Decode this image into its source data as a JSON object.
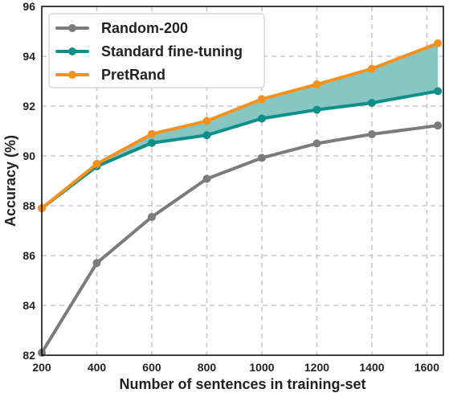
{
  "chart_data": {
    "type": "line",
    "xlabel": "Number of sentences in training-set",
    "ylabel": "Accuracy (%)",
    "xlim": [
      200,
      1660
    ],
    "ylim": [
      82,
      96
    ],
    "x_ticks": [
      200,
      400,
      600,
      800,
      1000,
      1200,
      1400,
      1600
    ],
    "y_ticks": [
      82,
      84,
      86,
      88,
      90,
      92,
      94,
      96
    ],
    "x": [
      200,
      400,
      600,
      800,
      1000,
      1200,
      1400,
      1640
    ],
    "grid": true,
    "legend_position": "top-left",
    "fill_between": {
      "upper": "PretRand",
      "lower": "Standard fine-tuning",
      "color": "#7fc4c1"
    },
    "series": [
      {
        "name": "Random-200",
        "color": "#7b7b7b",
        "values": [
          82.1,
          85.7,
          87.55,
          89.08,
          89.92,
          90.5,
          90.87,
          91.22
        ]
      },
      {
        "name": "Standard fine-tuning",
        "color": "#0e8f8a",
        "values": [
          87.9,
          89.58,
          90.52,
          90.83,
          91.5,
          91.85,
          92.13,
          92.6
        ]
      },
      {
        "name": "PretRand",
        "color": "#f5921e",
        "values": [
          87.9,
          89.68,
          90.88,
          91.4,
          92.28,
          92.87,
          93.5,
          94.52
        ]
      }
    ]
  }
}
